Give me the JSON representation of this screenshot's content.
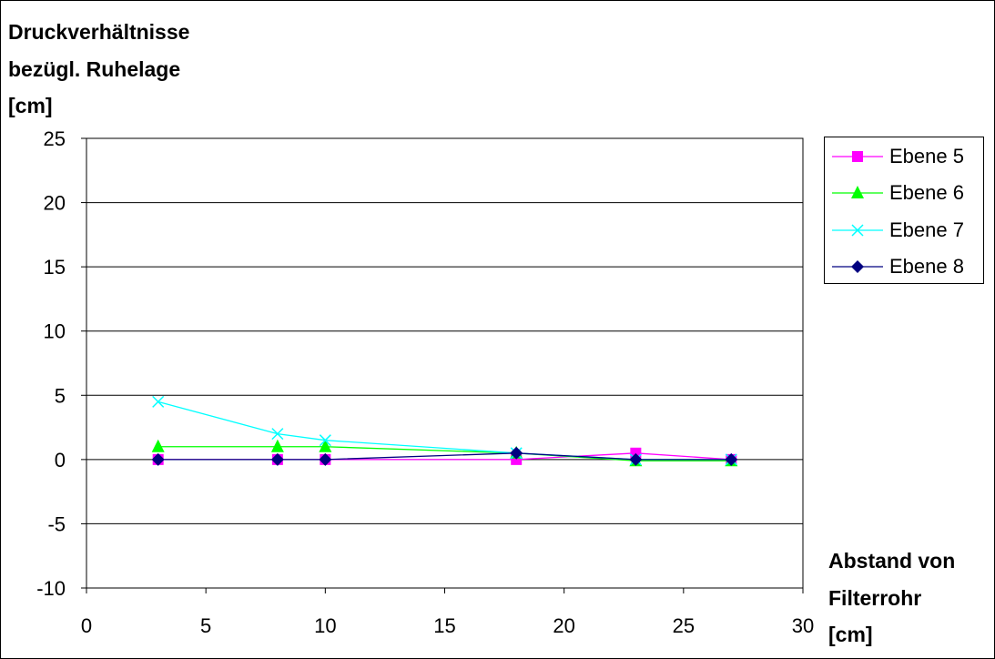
{
  "chart_data": {
    "type": "line",
    "ylabel_lines": [
      "Druckverhältnisse",
      "bezügl. Ruhelage",
      "[cm]"
    ],
    "xlabel_lines": [
      "Abstand von",
      "Filterrohr",
      "[cm]"
    ],
    "xlim": [
      0,
      30
    ],
    "ylim": [
      -10,
      25
    ],
    "xticks": [
      0,
      5,
      10,
      15,
      20,
      25,
      30
    ],
    "yticks": [
      -10,
      -5,
      0,
      5,
      10,
      15,
      20,
      25
    ],
    "grid": "horizontal",
    "legend_position": "right",
    "series": [
      {
        "name": "Ebene 5",
        "color": "#ff00ff",
        "marker": "square",
        "x": [
          3,
          8,
          10,
          18,
          23,
          27
        ],
        "y": [
          0,
          0,
          0,
          0,
          0.5,
          0
        ]
      },
      {
        "name": "Ebene 6",
        "color": "#00ff00",
        "marker": "triangle",
        "x": [
          3,
          8,
          10,
          18,
          23,
          27
        ],
        "y": [
          1,
          1,
          1,
          0.5,
          -0.1,
          -0.1
        ]
      },
      {
        "name": "Ebene 7",
        "color": "#00ffff",
        "marker": "x",
        "x": [
          3,
          8,
          10,
          18,
          23,
          27
        ],
        "y": [
          4.5,
          2,
          1.5,
          0.5,
          0,
          0
        ]
      },
      {
        "name": "Ebene 8",
        "color": "#000080",
        "marker": "diamond",
        "x": [
          3,
          8,
          10,
          18,
          23,
          27
        ],
        "y": [
          0,
          0,
          0,
          0.5,
          0,
          0
        ]
      }
    ]
  }
}
